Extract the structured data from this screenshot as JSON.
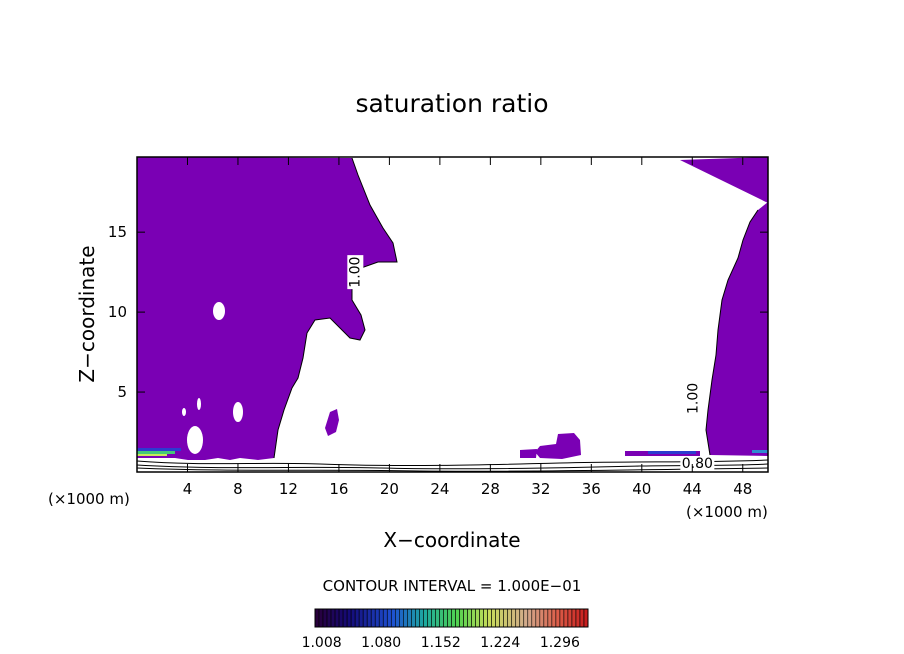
{
  "chart_data": {
    "type": "heatmap",
    "title": "saturation ratio",
    "xlabel": "X−coordinate",
    "ylabel": "Z−coordinate",
    "x_unit": "(×1000 m)",
    "z_unit": "(×1000 m)",
    "xlim": [
      0,
      50
    ],
    "ylim": [
      0,
      19.7
    ],
    "x_ticks": [
      4,
      8,
      12,
      16,
      20,
      24,
      28,
      32,
      36,
      40,
      44,
      48
    ],
    "y_ticks": [
      5,
      10,
      15
    ],
    "contour_labels": [
      {
        "text": "1.00",
        "x": 17.3,
        "z": 12.5
      },
      {
        "text": "1.00",
        "x": 44.1,
        "z": 4.6
      },
      {
        "text": "0.80",
        "x": 44.4,
        "z": 0.5
      }
    ],
    "contour_interval": "CONTOUR INTERVAL = 1.000E−01",
    "colorbar": {
      "min": 1.0,
      "max": 1.33,
      "tick_labels": [
        "1.008",
        "1.080",
        "1.152",
        "1.224",
        "1.296"
      ],
      "tick_values": [
        1.008,
        1.08,
        1.152,
        1.224,
        1.296
      ]
    },
    "fill_color": "#7a00b4",
    "grid": false,
    "legend": "bottom"
  }
}
